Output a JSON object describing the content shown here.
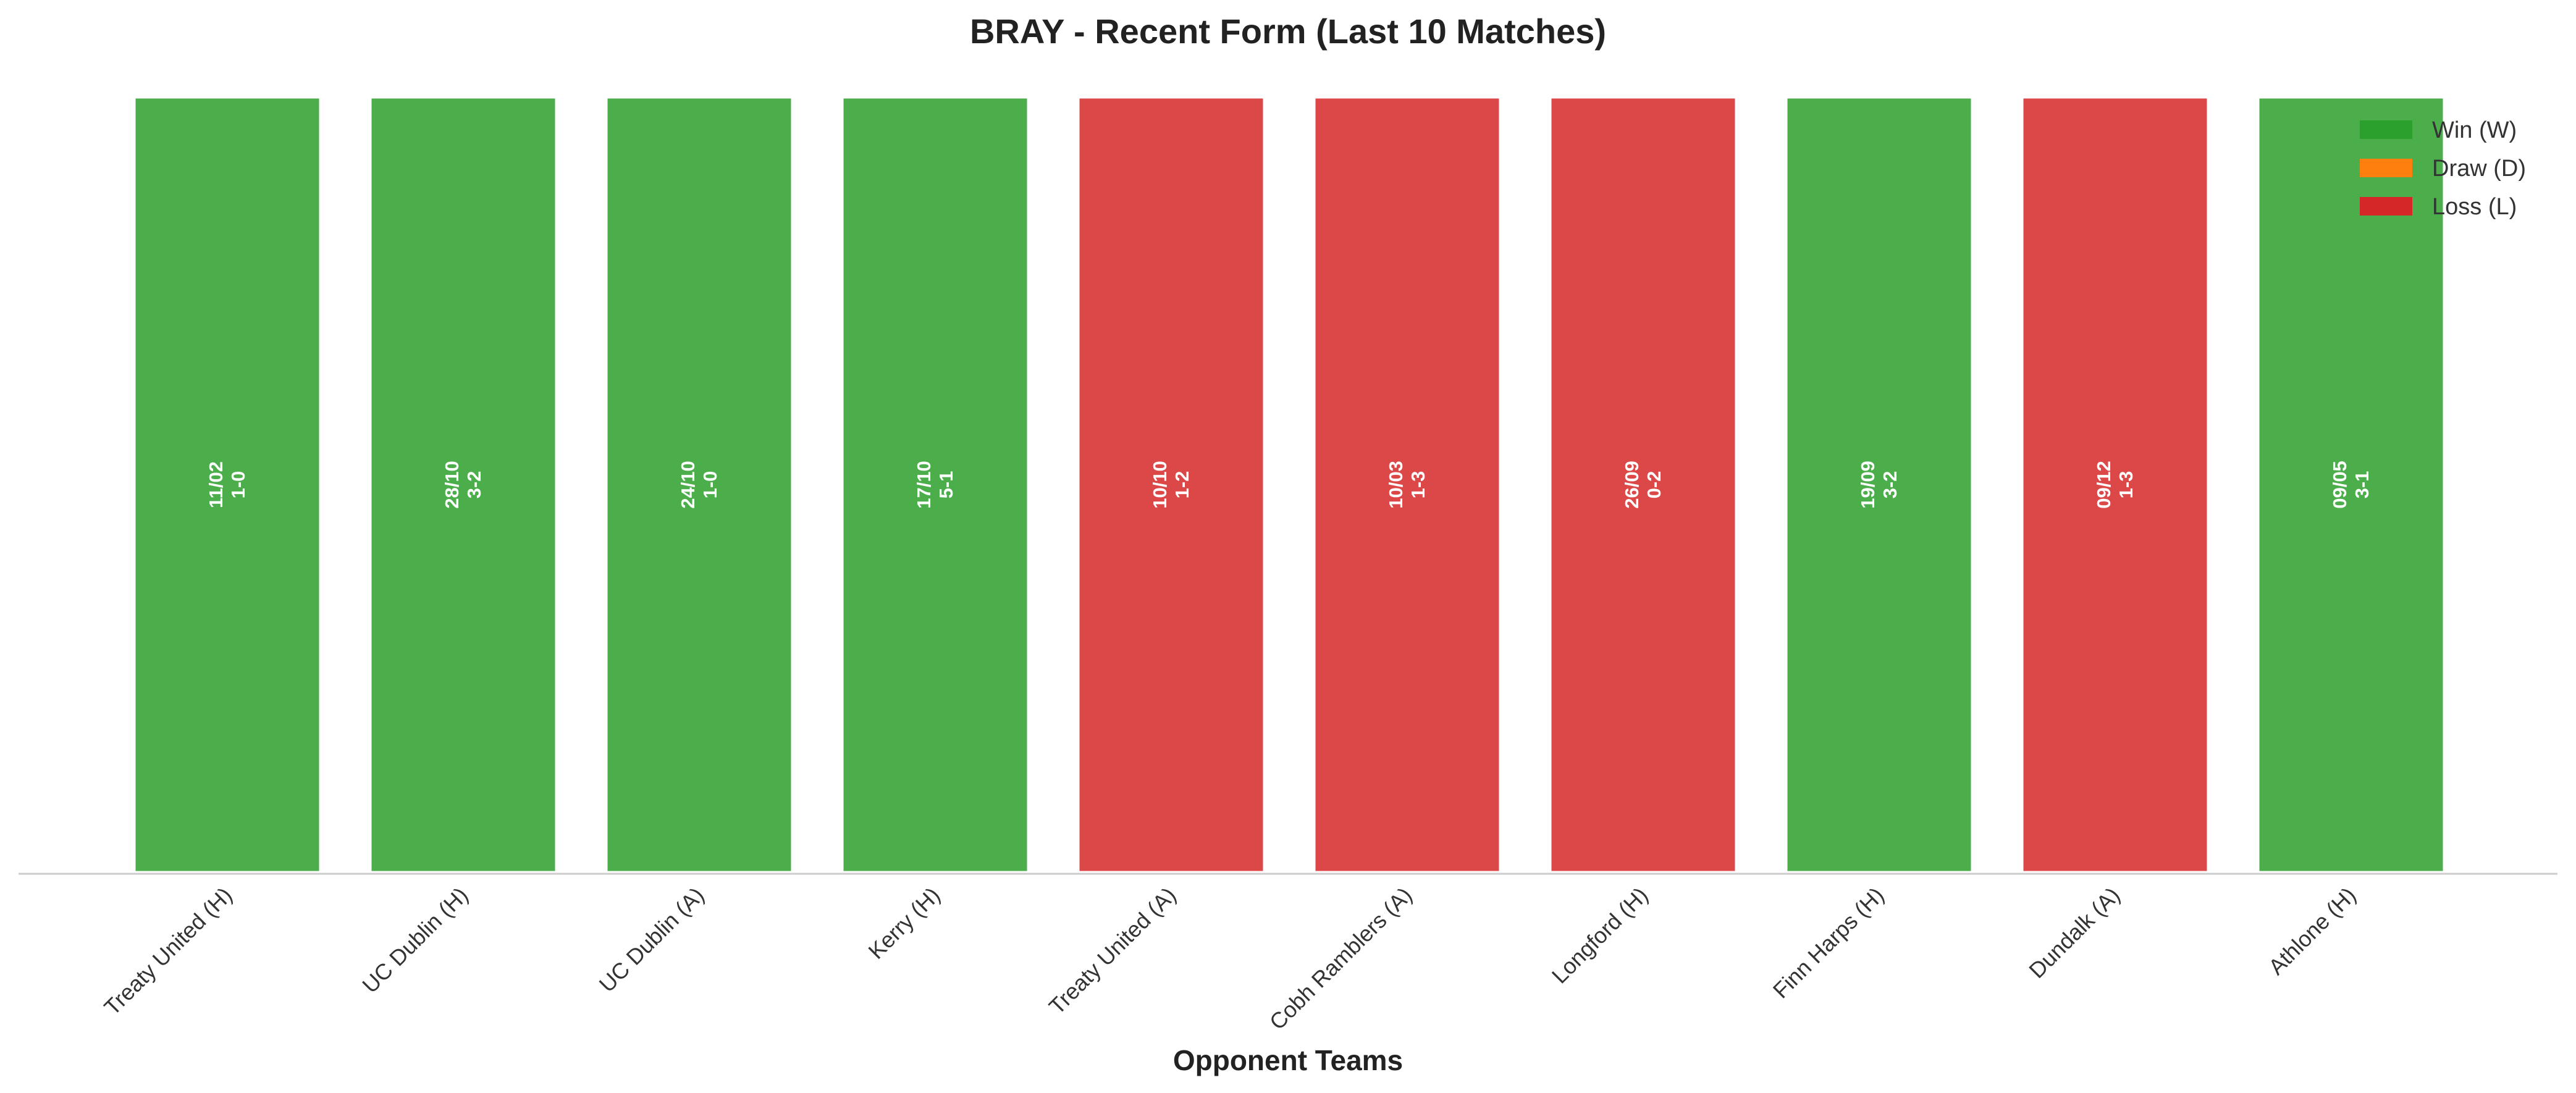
{
  "chart_data": {
    "type": "bar",
    "title": "BRAY - Recent Form (Last 10 Matches)",
    "xlabel": "Opponent Teams",
    "ylabel": "",
    "ylim": [
      0,
      1
    ],
    "grid": false,
    "legend_placement": "top-right",
    "categories": [
      "Treaty United (H)",
      "UC Dublin (H)",
      "UC Dublin (A)",
      "Kerry (H)",
      "Treaty United (A)",
      "Cobh Ramblers (A)",
      "Longford (H)",
      "Finn Harps (H)",
      "Dundalk (A)",
      "Athlone (H)"
    ],
    "values": [
      1,
      1,
      1,
      1,
      1,
      1,
      1,
      1,
      1,
      1
    ],
    "results": [
      "W",
      "W",
      "W",
      "W",
      "L",
      "L",
      "L",
      "W",
      "L",
      "W"
    ],
    "dates": [
      "11/02",
      "28/10",
      "24/10",
      "17/10",
      "10/10",
      "10/03",
      "26/09",
      "19/09",
      "09/12",
      "09/05"
    ],
    "scores": [
      "1-0",
      "3-2",
      "1-0",
      "5-1",
      "1-2",
      "1-3",
      "0-2",
      "3-2",
      "1-3",
      "3-1"
    ],
    "legend": [
      {
        "key": "W",
        "label": "Win (W)",
        "color": "#2ca02c"
      },
      {
        "key": "D",
        "label": "Draw (D)",
        "color": "#ff7f0e"
      },
      {
        "key": "L",
        "label": "Loss (L)",
        "color": "#d62728"
      }
    ]
  }
}
